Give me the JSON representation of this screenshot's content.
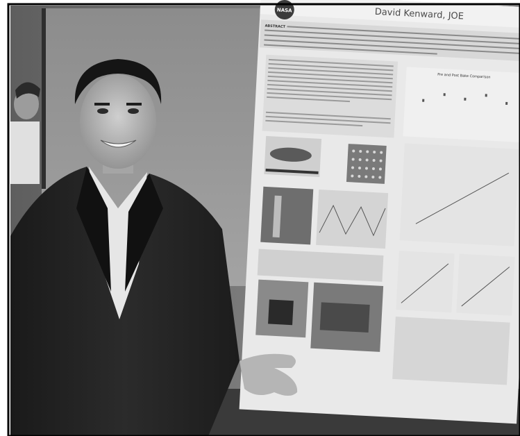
{
  "poster": {
    "logo_text": "NASA",
    "author_line": "David Kenward, JOE",
    "section_label": "ABSTRACT",
    "chart_title": "Pre and Post Bake Comparison"
  }
}
